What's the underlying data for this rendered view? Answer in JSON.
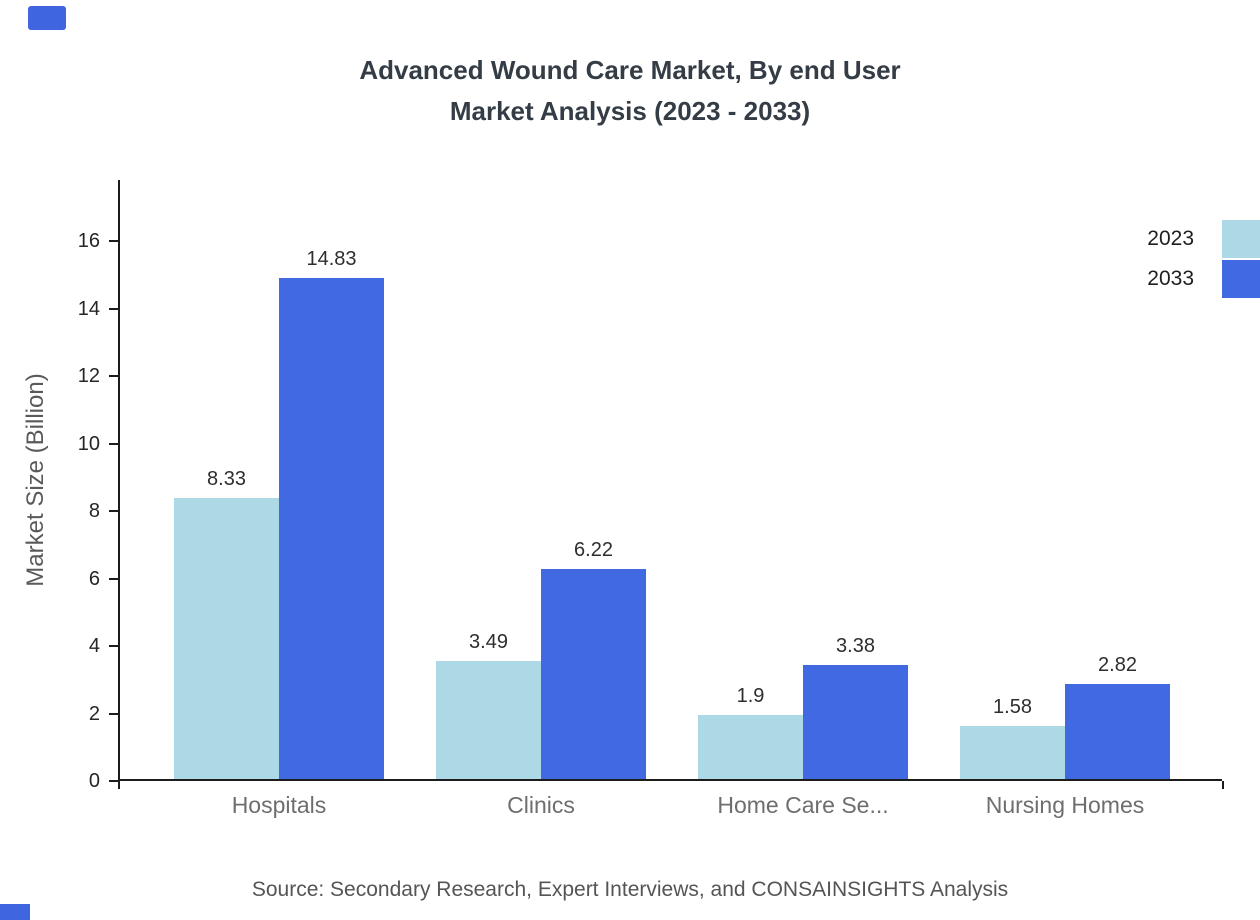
{
  "header": {
    "title_line1": "Advanced Wound Care Market, By end User",
    "title_line2": "Market Analysis (2023 - 2033)"
  },
  "footer": {
    "source": "Source: Secondary Research, Expert Interviews, and CONSAINSIGHTS Analysis"
  },
  "decoration": {
    "accent_color": "#4065E0"
  },
  "chart_data": {
    "type": "bar",
    "title": "Advanced Wound Care Market, By end User Market Analysis (2023 - 2033)",
    "categories": [
      "Hospitals",
      "Clinics",
      "Home Care Se...",
      "Nursing Homes"
    ],
    "series": [
      {
        "name": "2023",
        "color": "#ADD8E6",
        "values": [
          8.33,
          3.49,
          1.9,
          1.58
        ]
      },
      {
        "name": "2033",
        "color": "#4169E1",
        "values": [
          14.83,
          6.22,
          3.38,
          2.82
        ]
      }
    ],
    "xlabel": "",
    "ylabel": "Market Size (Billion)",
    "ylim": [
      0,
      17.8
    ],
    "yticks": [
      0,
      2,
      4,
      6,
      8,
      10,
      12,
      14,
      16
    ],
    "grid": false,
    "legend_position": "top-right"
  }
}
